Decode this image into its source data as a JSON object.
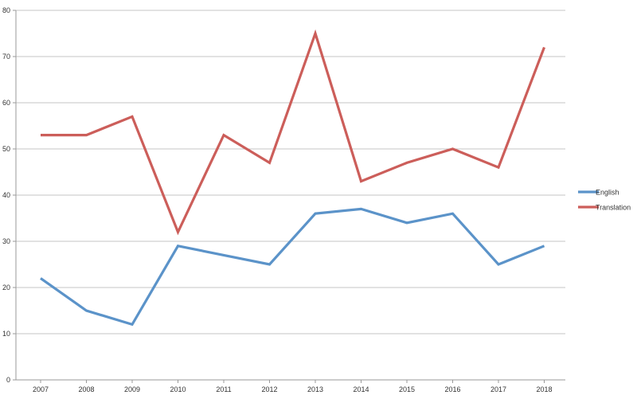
{
  "chart_data": {
    "type": "line",
    "title": "",
    "xlabel": "",
    "ylabel": "",
    "x": [
      "2007",
      "2008",
      "2009",
      "2010",
      "2011",
      "2012",
      "2013",
      "2014",
      "2015",
      "2016",
      "2017",
      "2018"
    ],
    "series": [
      {
        "name": "English",
        "color": "#5b93c9",
        "values": [
          22,
          15,
          12,
          29,
          27,
          25,
          36,
          37,
          34,
          36,
          25,
          29
        ]
      },
      {
        "name": "Translation",
        "color": "#cc5e5a",
        "values": [
          53,
          53,
          57,
          32,
          53,
          47,
          75,
          43,
          47,
          50,
          46,
          72
        ]
      }
    ],
    "yticks": [
      "0",
      "10",
      "20",
      "30",
      "40",
      "50",
      "60",
      "70",
      "80"
    ],
    "ylim": [
      0,
      80
    ],
    "grid": true,
    "legend_position": "right"
  }
}
